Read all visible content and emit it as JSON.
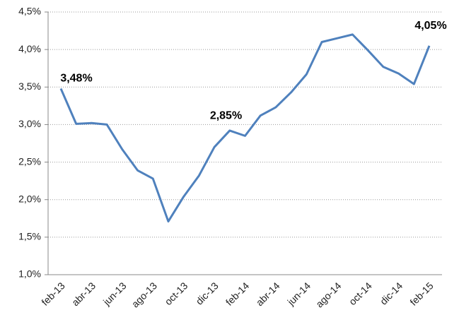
{
  "chart_data": {
    "type": "line",
    "categories": [
      "feb-13",
      null,
      "abr-13",
      null,
      "jun-13",
      null,
      "ago-13",
      null,
      "oct-13",
      null,
      "dic-13",
      null,
      "feb-14",
      null,
      "abr-14",
      null,
      "jun-14",
      null,
      "ago-14",
      null,
      "oct-14",
      null,
      "dic-14",
      null,
      "feb-15"
    ],
    "series": [
      {
        "color": "#4f81bd",
        "values": [
          3.48,
          3.01,
          3.02,
          3.0,
          2.67,
          2.39,
          2.28,
          1.71,
          2.04,
          2.32,
          2.7,
          2.92,
          2.85,
          3.12,
          3.23,
          3.43,
          3.67,
          4.1,
          4.15,
          4.2,
          3.99,
          3.77,
          3.68,
          3.54,
          4.05
        ],
        "value_labels": [
          "3,48%",
          null,
          null,
          null,
          null,
          null,
          null,
          null,
          null,
          null,
          null,
          null,
          "2,85%",
          null,
          null,
          null,
          null,
          null,
          null,
          null,
          null,
          null,
          null,
          null,
          "4,05%"
        ]
      }
    ],
    "ylim": [
      1.0,
      4.5
    ],
    "yticks": [
      {
        "value": 1.0,
        "label": "1,0%"
      },
      {
        "value": 1.5,
        "label": "1,5%"
      },
      {
        "value": 2.0,
        "label": "2,0%"
      },
      {
        "value": 2.5,
        "label": "2,5%"
      },
      {
        "value": 3.0,
        "label": "3,0%"
      },
      {
        "value": 3.5,
        "label": "3,5%"
      },
      {
        "value": 4.0,
        "label": "4,0%"
      },
      {
        "value": 4.5,
        "label": "4,5%"
      }
    ],
    "grid": true
  }
}
